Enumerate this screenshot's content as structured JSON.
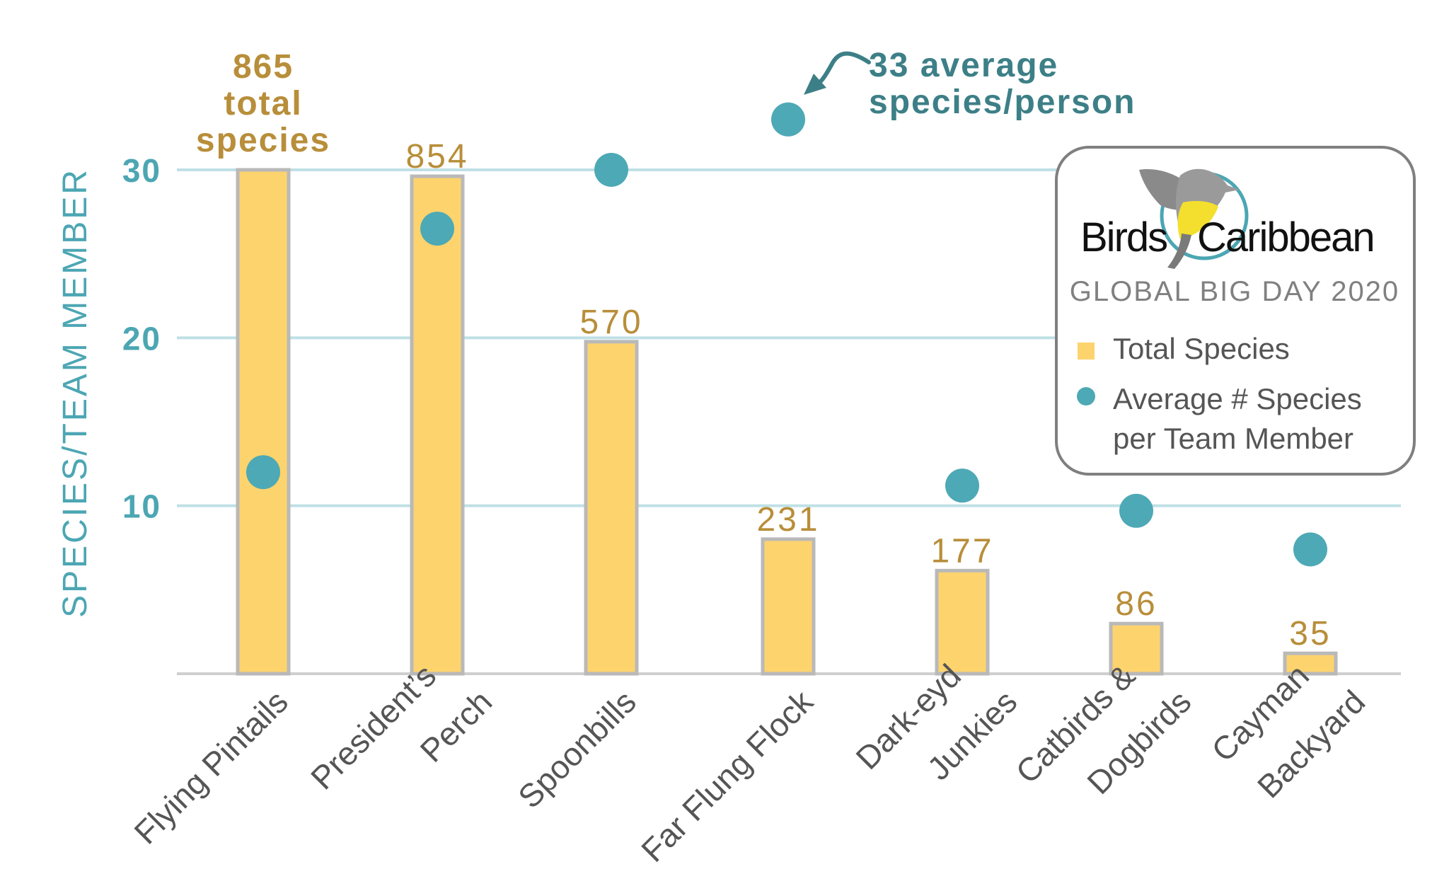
{
  "chart_data": {
    "type": "bar",
    "ylabel": "SPECIES/TEAM MEMBER",
    "ylim": [
      0,
      30
    ],
    "yticks": [
      10,
      20,
      30
    ],
    "grid": true,
    "categories": [
      "Flying Pintails",
      "President’s Perch",
      "Spoonbills",
      "Far Flung Flock",
      "Dark-eyd Junkies",
      "Catbirds & Dogbirds",
      "Cayman Backyard"
    ],
    "category_lines": [
      [
        "Flying Pintails"
      ],
      [
        "President’s",
        "Perch"
      ],
      [
        "Spoonbills"
      ],
      [
        "Far Flung Flock"
      ],
      [
        "Dark-eyd",
        "Junkies"
      ],
      [
        "Catbirds &",
        "Dogbirds"
      ],
      [
        "Cayman",
        "Backyard"
      ]
    ],
    "series": [
      {
        "name": "Total Species",
        "values": [
          865,
          854,
          570,
          231,
          177,
          86,
          35
        ],
        "value_labels": [
          "865",
          "854",
          "570",
          "231",
          "177",
          "86",
          "35"
        ]
      },
      {
        "name": "Average # Species per Team Member",
        "values": [
          12,
          26.5,
          30,
          33,
          11.2,
          9.7,
          7.4
        ]
      }
    ],
    "annotations": {
      "total_callout": [
        "865",
        "total",
        "species"
      ],
      "average_callout": [
        "33 average",
        "species/person"
      ]
    },
    "legend": {
      "placement": "top-right",
      "brand_left": "Birds",
      "brand_right": "Caribbean",
      "event": "GLOBAL BIG DAY 2020",
      "items": [
        {
          "label_lines": [
            "Total Species"
          ],
          "marker": "square"
        },
        {
          "label_lines": [
            "Average # Species",
            "per Team Member"
          ],
          "marker": "circle"
        }
      ]
    },
    "colors": {
      "bar_fill": "#FDD36E",
      "bar_stroke": "#B9B9B9",
      "dot": "#4DA9B5",
      "grid": "#BFE0E5",
      "axis_teal": "#4CA6B3",
      "gold_text": "#B88E3A",
      "dark_teal": "#3D7F87",
      "label_gray": "#555555",
      "bird_gray": "#8A8A8A",
      "bird_yellow": "#F4DF2E"
    }
  }
}
